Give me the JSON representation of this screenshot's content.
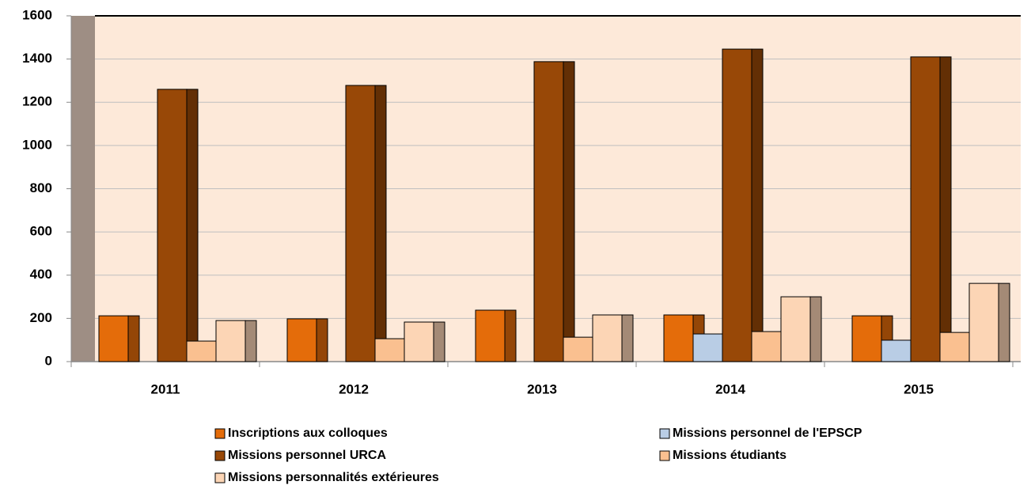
{
  "chart_data": {
    "type": "bar",
    "categories": [
      "2011",
      "2012",
      "2013",
      "2014",
      "2015"
    ],
    "series": [
      {
        "name": "Inscriptions aux colloques",
        "color": "#e46c0a",
        "values": [
          212,
          198,
          238,
          216,
          212
        ]
      },
      {
        "name": "Missions personnel de l'EPSCP",
        "color": "#b9cde5",
        "values": [
          0,
          0,
          0,
          128,
          99
        ]
      },
      {
        "name": "Missions personnel URCA",
        "color": "#984807",
        "values": [
          1260,
          1278,
          1388,
          1446,
          1410
        ]
      },
      {
        "name": "Missions étudiants",
        "color": "#fac090",
        "values": [
          95,
          106,
          113,
          139,
          135
        ]
      },
      {
        "name": "Missions personnalités extérieures",
        "color": "#fcd5b5",
        "values": [
          190,
          183,
          216,
          300,
          362
        ]
      }
    ],
    "ylim": [
      0,
      1600
    ],
    "yticks": [
      0,
      200,
      400,
      600,
      800,
      1000,
      1200,
      1400,
      1600
    ],
    "grid": true
  }
}
